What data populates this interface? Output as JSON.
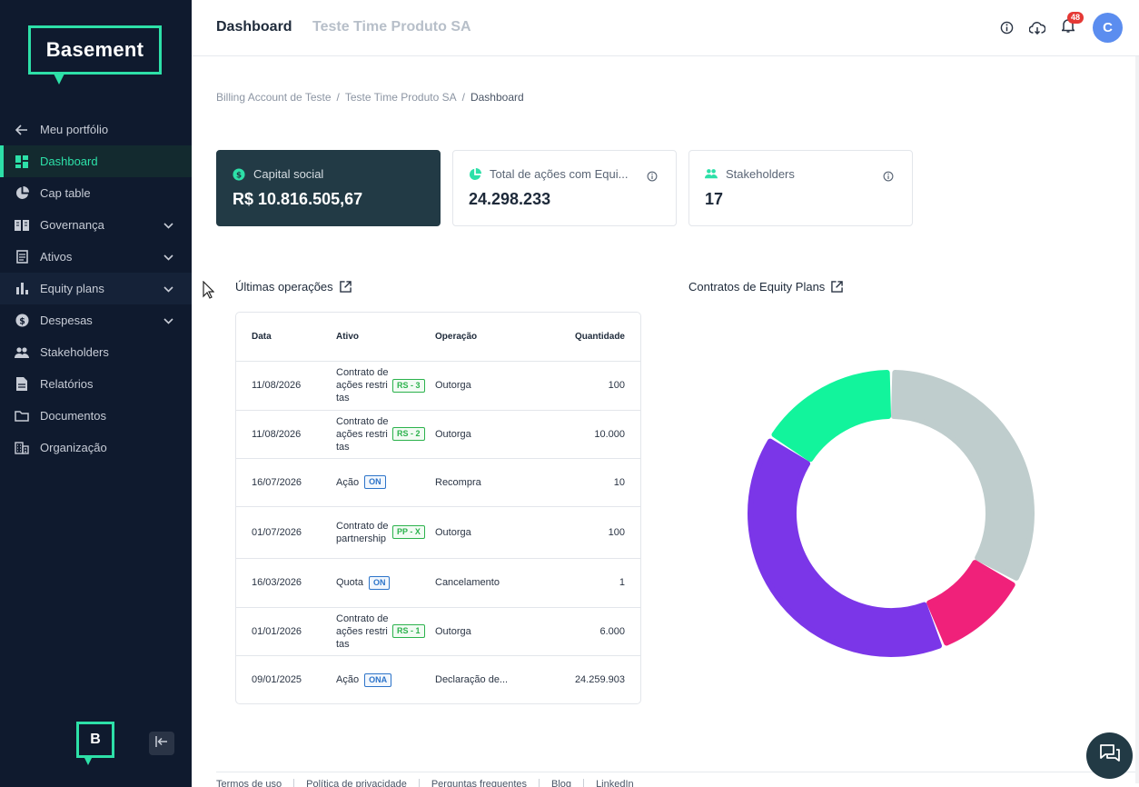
{
  "sidebar": {
    "logo_text": "Basement",
    "small_logo_text": "B",
    "items": [
      {
        "label": "Meu portfólio",
        "icon": "arrow-left-icon"
      },
      {
        "label": "Dashboard",
        "icon": "dashboard-icon",
        "active": true
      },
      {
        "label": "Cap table",
        "icon": "pie-icon"
      },
      {
        "label": "Governança",
        "icon": "book-icon",
        "expandable": true
      },
      {
        "label": "Ativos",
        "icon": "document-icon",
        "expandable": true
      },
      {
        "label": "Equity plans",
        "icon": "bar-chart-icon",
        "expandable": true
      },
      {
        "label": "Despesas",
        "icon": "dollar-icon",
        "expandable": true
      },
      {
        "label": "Stakeholders",
        "icon": "people-icon"
      },
      {
        "label": "Relatórios",
        "icon": "report-icon"
      },
      {
        "label": "Documentos",
        "icon": "folder-icon"
      },
      {
        "label": "Organização",
        "icon": "building-icon"
      }
    ]
  },
  "header": {
    "title": "Dashboard",
    "subtitle": "Teste Time Produto SA",
    "notification_count": "48",
    "avatar_letter": "C"
  },
  "breadcrumb": {
    "items": [
      "Billing Account de Teste",
      "Teste Time Produto SA",
      "Dashboard"
    ]
  },
  "cards": {
    "capital": {
      "label": "Capital social",
      "value": "R$ 10.816.505,67"
    },
    "acoes": {
      "label": "Total de ações com Equi...",
      "value": "24.298.233"
    },
    "stakeholders": {
      "label": "Stakeholders",
      "value": "17"
    }
  },
  "operations": {
    "title": "Últimas operações",
    "headers": [
      "Data",
      "Ativo",
      "Operação",
      "Quantidade"
    ],
    "rows": [
      {
        "data": "11/08/2026",
        "ativo": "Contrato de ações restritas",
        "tag": "RS - 3",
        "tag_color": "green",
        "operacao": "Outorga",
        "quantidade": "100"
      },
      {
        "data": "11/08/2026",
        "ativo": "Contrato de ações restritas",
        "tag": "RS - 2",
        "tag_color": "green",
        "operacao": "Outorga",
        "quantidade": "10.000"
      },
      {
        "data": "16/07/2026",
        "ativo": "Ação",
        "tag": "ON",
        "tag_color": "blue",
        "operacao": "Recompra",
        "quantidade": "10"
      },
      {
        "data": "01/07/2026",
        "ativo": "Contrato de partnership",
        "tag": "PP - X",
        "tag_color": "green",
        "operacao": "Outorga",
        "quantidade": "100"
      },
      {
        "data": "16/03/2026",
        "ativo": "Quota",
        "tag": "ON",
        "tag_color": "blue",
        "operacao": "Cancelamento",
        "quantidade": "1"
      },
      {
        "data": "01/01/2026",
        "ativo": "Contrato de ações restritas",
        "tag": "RS - 1",
        "tag_color": "green",
        "operacao": "Outorga",
        "quantidade": "6.000"
      },
      {
        "data": "09/01/2025",
        "ativo": "Ação",
        "tag": "ONA",
        "tag_color": "blue",
        "operacao": "Declaração de...",
        "quantidade": "24.259.903"
      }
    ]
  },
  "equity_contracts": {
    "title": "Contratos de Equity Plans"
  },
  "chart_data": {
    "type": "pie",
    "style": "donut",
    "slices": [
      {
        "value": 33,
        "color": "#bfcdcd"
      },
      {
        "value": 11,
        "color": "#f0217a"
      },
      {
        "value": 40,
        "color": "#7b36e8"
      },
      {
        "value": 16,
        "color": "#12f49c"
      }
    ]
  },
  "footer": {
    "links": [
      "Termos de uso",
      "Política de privacidade",
      "Perguntas frequentes",
      "Blog",
      "LinkedIn"
    ]
  }
}
